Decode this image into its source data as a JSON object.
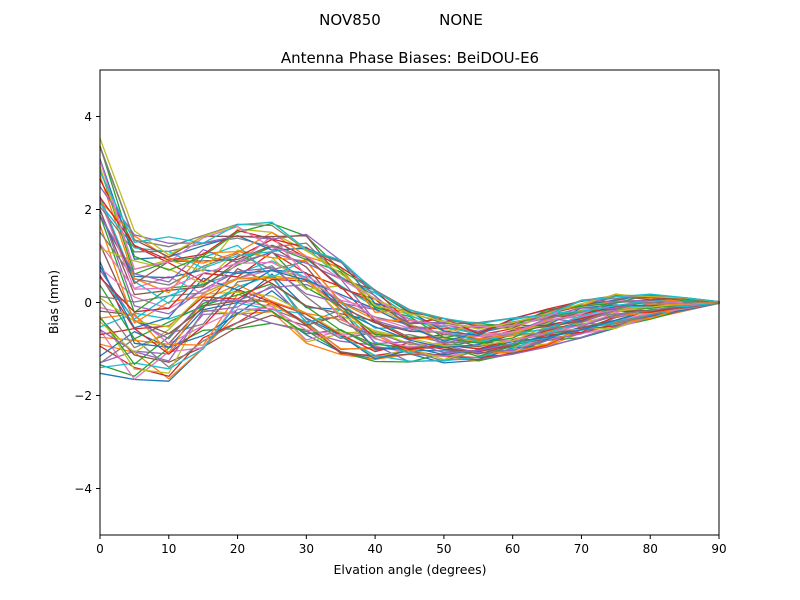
{
  "figure": {
    "suptitle_left": "NOV850",
    "suptitle_right": "NONE",
    "title": "Antenna Phase Biases: BeiDOU-E6",
    "xlabel": "Elvation angle (degrees)",
    "ylabel": "Bias (mm)"
  },
  "chart_data": {
    "type": "line",
    "title": "Antenna Phase Biases: BeiDOU-E6",
    "suptitle": "NOV850          NONE",
    "xlabel": "Elvation angle (degrees)",
    "ylabel": "Bias (mm)",
    "xlim": [
      0,
      90
    ],
    "ylim": [
      -5,
      5
    ],
    "xticks": [
      0,
      10,
      20,
      30,
      40,
      50,
      60,
      70,
      80,
      90
    ],
    "yticks": [
      -4,
      -2,
      0,
      2,
      4
    ],
    "grid": false,
    "legend": "none",
    "n_lines": 60,
    "x": [
      0,
      5,
      10,
      15,
      20,
      25,
      30,
      35,
      40,
      45,
      50,
      55,
      60,
      65,
      70,
      75,
      80,
      85,
      90
    ],
    "envelope_top": [
      3.4,
      1.5,
      1.3,
      1.35,
      1.6,
      1.7,
      1.45,
      0.9,
      0.25,
      -0.15,
      -0.35,
      -0.45,
      -0.35,
      -0.15,
      0.05,
      0.18,
      0.18,
      0.1,
      0.02
    ],
    "envelope_bottom": [
      -1.4,
      -1.65,
      -1.55,
      -0.9,
      -0.5,
      -0.45,
      -0.85,
      -1.1,
      -1.25,
      -1.3,
      -1.3,
      -1.25,
      -1.1,
      -0.95,
      -0.75,
      -0.55,
      -0.35,
      -0.18,
      -0.02
    ],
    "wiggle_amplitude": [
      0.5,
      0.55,
      0.5,
      0.35,
      0.28,
      0.22,
      0.18,
      0.14,
      0.12,
      0.1,
      0.08,
      0.07,
      0.06,
      0.05,
      0.04,
      0.03,
      0.03,
      0.02,
      0.0
    ],
    "colors": [
      "#1f77b4",
      "#ff7f0e",
      "#2ca02c",
      "#d62728",
      "#9467bd",
      "#8c564b",
      "#e377c2",
      "#7f7f7f",
      "#bcbd22",
      "#17becf"
    ],
    "seed": 42
  }
}
